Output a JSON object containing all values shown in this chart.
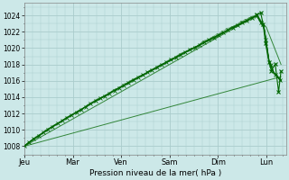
{
  "background_color": "#cce8e8",
  "grid_color": "#aacccc",
  "line_color_main": "#006600",
  "line_color_light": "#227722",
  "ylabel_text": "Pression niveau de la mer( hPa )",
  "day_labels": [
    "Jeu",
    "Mar",
    "Ven",
    "Sam",
    "Dim",
    "Lun"
  ],
  "yticks": [
    1008,
    1010,
    1012,
    1014,
    1016,
    1018,
    1020,
    1022,
    1024
  ],
  "ylim": [
    1007.0,
    1025.5
  ],
  "xlim": [
    0.0,
    5.4
  ]
}
